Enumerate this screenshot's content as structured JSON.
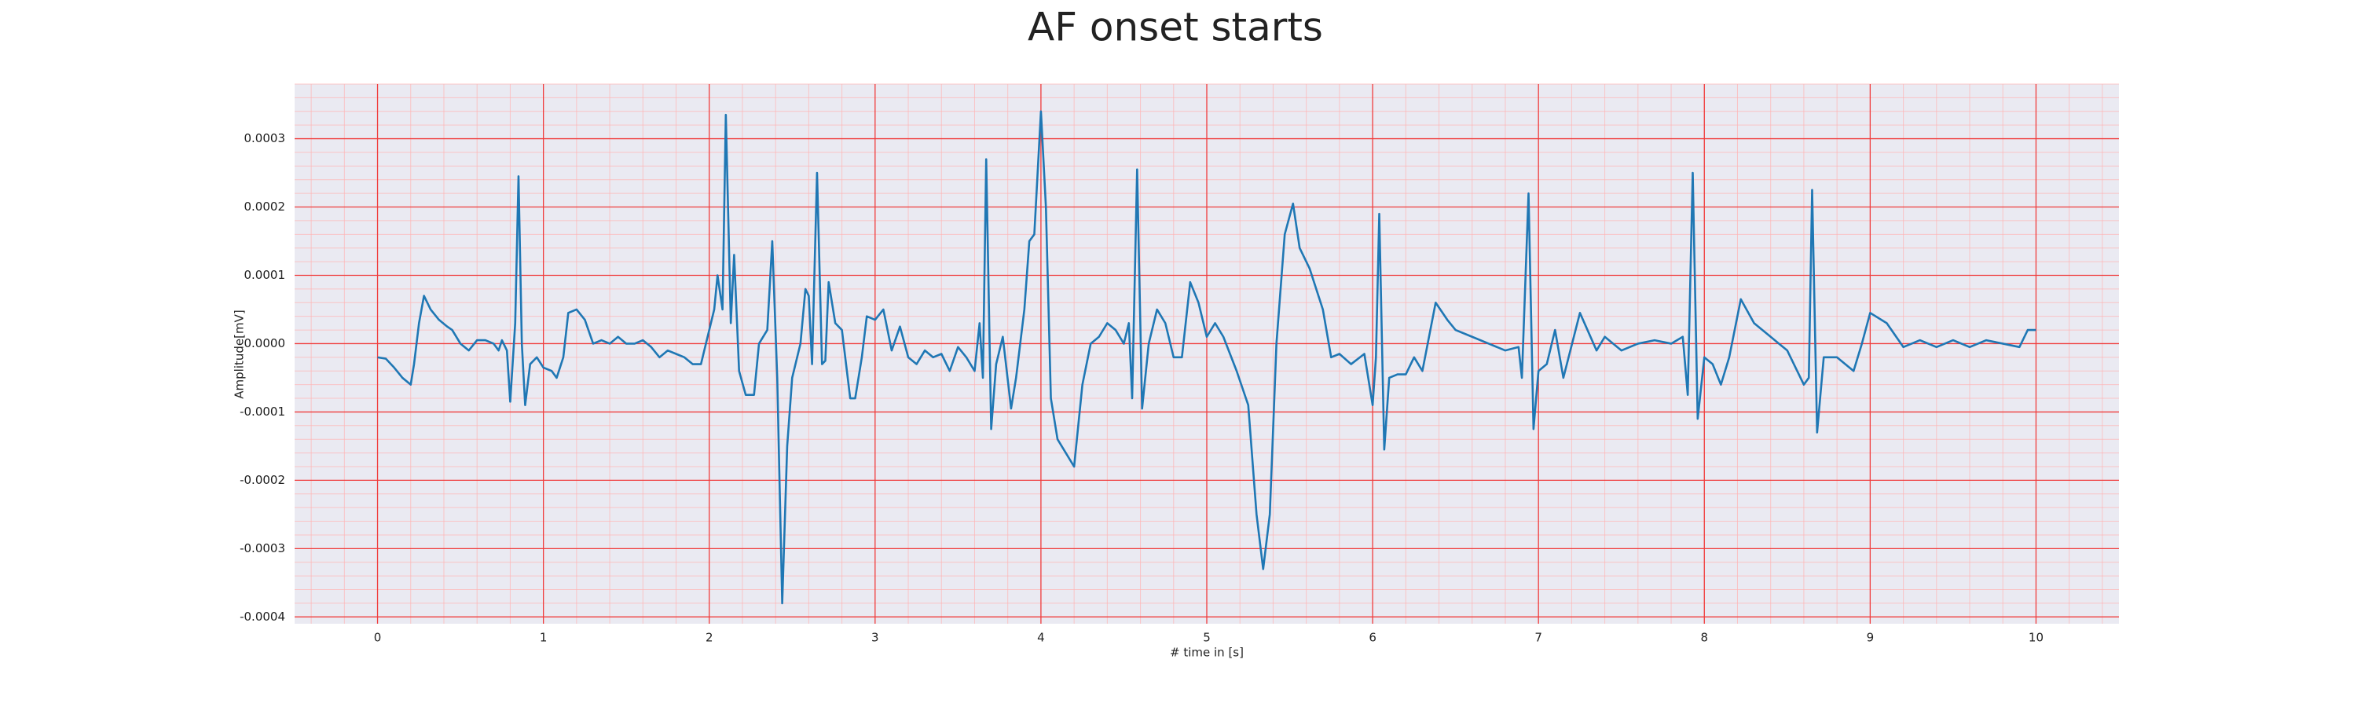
{
  "chart_data": {
    "type": "line",
    "title": "AF onset starts",
    "xlabel": "# time in [s]",
    "ylabel": "Amplitude[mV]",
    "color": "#1f77b4",
    "grid": true,
    "xlim": [
      -0.5,
      10.5
    ],
    "ylim": [
      -0.00041,
      0.00038
    ],
    "xticks": [
      0,
      1,
      2,
      3,
      4,
      5,
      6,
      7,
      8,
      9,
      10
    ],
    "yticks": [
      -0.0004,
      -0.0003,
      -0.0002,
      -0.0001,
      {
        "value": 0,
        "label": "0.0000"
      },
      0.0001,
      0.0002,
      0.0003
    ],
    "x": [
      0,
      0.05,
      0.1,
      0.15,
      0.2,
      0.22,
      0.25,
      0.28,
      0.32,
      0.37,
      0.42,
      0.45,
      0.5,
      0.55,
      0.6,
      0.65,
      0.7,
      0.73,
      0.75,
      0.78,
      0.8,
      0.83,
      0.85,
      0.87,
      0.89,
      0.92,
      0.96,
      1.0,
      1.05,
      1.08,
      1.12,
      1.15,
      1.2,
      1.25,
      1.3,
      1.35,
      1.4,
      1.45,
      1.5,
      1.55,
      1.6,
      1.65,
      1.7,
      1.75,
      1.8,
      1.85,
      1.9,
      1.95,
      2.0,
      2.03,
      2.05,
      2.08,
      2.1,
      2.13,
      2.15,
      2.18,
      2.22,
      2.27,
      2.3,
      2.35,
      2.38,
      2.41,
      2.44,
      2.47,
      2.5,
      2.55,
      2.58,
      2.6,
      2.62,
      2.65,
      2.68,
      2.7,
      2.72,
      2.76,
      2.8,
      2.85,
      2.88,
      2.92,
      2.95,
      3.0,
      3.05,
      3.1,
      3.15,
      3.2,
      3.25,
      3.3,
      3.35,
      3.4,
      3.45,
      3.5,
      3.55,
      3.6,
      3.63,
      3.65,
      3.67,
      3.7,
      3.73,
      3.77,
      3.82,
      3.85,
      3.9,
      3.93,
      3.96,
      4.0,
      4.03,
      4.06,
      4.1,
      4.15,
      4.2,
      4.25,
      4.3,
      4.35,
      4.4,
      4.45,
      4.5,
      4.53,
      4.55,
      4.58,
      4.61,
      4.65,
      4.7,
      4.75,
      4.8,
      4.85,
      4.9,
      4.95,
      5.0,
      5.05,
      5.1,
      5.18,
      5.25,
      5.3,
      5.34,
      5.38,
      5.42,
      5.47,
      5.52,
      5.56,
      5.62,
      5.7,
      5.75,
      5.8,
      5.87,
      5.95,
      6.0,
      6.02,
      6.04,
      6.07,
      6.1,
      6.15,
      6.2,
      6.25,
      6.3,
      6.38,
      6.45,
      6.5,
      6.6,
      6.7,
      6.8,
      6.88,
      6.9,
      6.94,
      6.97,
      7.0,
      7.05,
      7.1,
      7.15,
      7.25,
      7.35,
      7.4,
      7.5,
      7.6,
      7.7,
      7.8,
      7.87,
      7.9,
      7.93,
      7.96,
      8.0,
      8.05,
      8.1,
      8.15,
      8.22,
      8.3,
      8.4,
      8.45,
      8.5,
      8.6,
      8.63,
      8.65,
      8.68,
      8.72,
      8.8,
      8.9,
      8.95,
      9.0,
      9.1,
      9.2,
      9.3,
      9.4,
      9.5,
      9.6,
      9.7,
      9.8,
      9.9,
      9.95,
      10.0
    ],
    "values": [
      -2e-05,
      -2.2e-05,
      -3.5e-05,
      -5e-05,
      -6e-05,
      -3e-05,
      3e-05,
      7e-05,
      5e-05,
      3.5e-05,
      2.5e-05,
      2e-05,
      0.0,
      -1e-05,
      5e-06,
      5e-06,
      0.0,
      -1e-05,
      5e-06,
      -1e-05,
      -8.5e-05,
      3e-05,
      0.000245,
      0.0,
      -9e-05,
      -3e-05,
      -2e-05,
      -3.5e-05,
      -4e-05,
      -5e-05,
      -2e-05,
      4.5e-05,
      5e-05,
      3.5e-05,
      0.0,
      5e-06,
      0.0,
      1e-05,
      0.0,
      0.0,
      5e-06,
      -5e-06,
      -2e-05,
      -1e-05,
      -1.5e-05,
      -2e-05,
      -3e-05,
      -3e-05,
      2e-05,
      5e-05,
      0.0001,
      5e-05,
      0.000335,
      3e-05,
      0.00013,
      -4e-05,
      -7.5e-05,
      -7.5e-05,
      0.0,
      2e-05,
      0.00015,
      -5e-05,
      -0.00038,
      -0.00015,
      -5e-05,
      0.0,
      8e-05,
      7e-05,
      -3e-05,
      0.00025,
      -3e-05,
      -2.5e-05,
      9e-05,
      3e-05,
      2e-05,
      -8e-05,
      -8e-05,
      -2e-05,
      4e-05,
      3.5e-05,
      5e-05,
      -1e-05,
      2.5e-05,
      -2e-05,
      -3e-05,
      -1e-05,
      -2e-05,
      -1.5e-05,
      -4e-05,
      -5e-06,
      -2e-05,
      -4e-05,
      3e-05,
      -5e-05,
      0.00027,
      -0.000125,
      -3e-05,
      1e-05,
      -9.5e-05,
      -5e-05,
      5e-05,
      0.00015,
      0.00016,
      0.00034,
      0.0002,
      -8e-05,
      -0.00014,
      -0.00016,
      -0.00018,
      -6e-05,
      0.0,
      1e-05,
      3e-05,
      2e-05,
      0.0,
      3e-05,
      -8e-05,
      0.000255,
      -9.5e-05,
      0.0,
      5e-05,
      3e-05,
      -2e-05,
      -2e-05,
      9e-05,
      6e-05,
      1e-05,
      3e-05,
      1e-05,
      -4e-05,
      -9e-05,
      -0.00025,
      -0.00033,
      -0.00025,
      0.0,
      0.00016,
      0.000205,
      0.00014,
      0.00011,
      5e-05,
      -2e-05,
      -1.5e-05,
      -3e-05,
      -1.5e-05,
      -9e-05,
      -2e-05,
      0.00019,
      -0.000155,
      -5e-05,
      -4.5e-05,
      -4.5e-05,
      -2e-05,
      -4e-05,
      6e-05,
      3.5e-05,
      2e-05,
      1e-05,
      0.0,
      -1e-05,
      -5e-06,
      -5e-05,
      0.00022,
      -0.000125,
      -4e-05,
      -3e-05,
      2e-05,
      -5e-05,
      4.5e-05,
      -1e-05,
      1e-05,
      -1e-05,
      0.0,
      5e-06,
      0.0,
      1e-05,
      -7.5e-05,
      0.00025,
      -0.00011,
      -2e-05,
      -3e-05,
      -6e-05,
      -2e-05,
      6.5e-05,
      3e-05,
      1e-05,
      0.0,
      -1e-05,
      -6e-05,
      -5e-05,
      0.000225,
      -0.00013,
      -2e-05,
      -2e-05,
      -4e-05,
      0.0,
      4.5e-05,
      3e-05,
      -5e-06,
      5e-06,
      -5e-06,
      5e-06,
      -5e-06,
      5e-06,
      0.0,
      -5e-06,
      2e-05,
      2e-05
    ]
  }
}
